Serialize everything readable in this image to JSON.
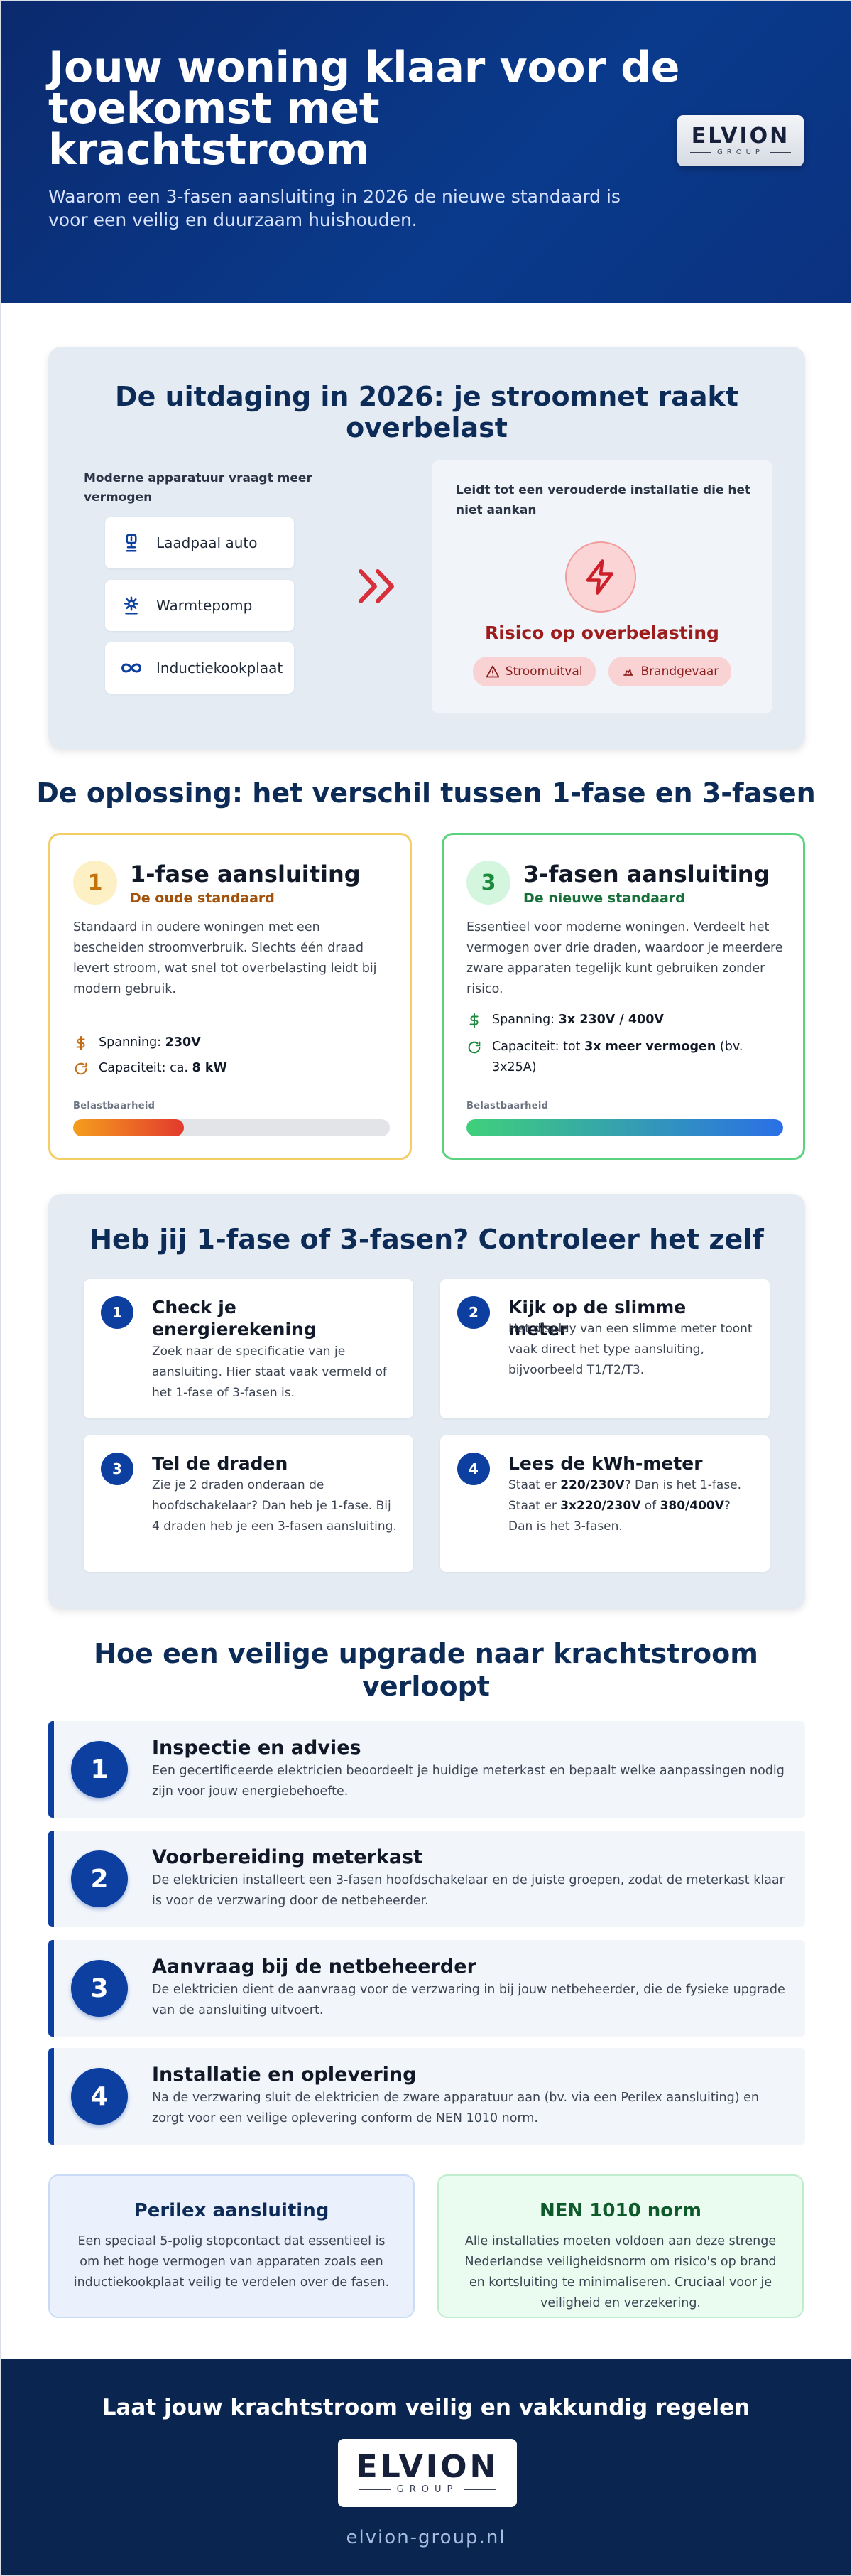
{
  "hero": {
    "title": "Jouw woning klaar voor de toekomst met krachtstroom",
    "subtitle": "Waarom een 3-fasen aansluiting in 2026 de nieuwe standaard is voor een veilig en duurzaam huishouden.",
    "logo_main": "ELVION",
    "logo_sub": "GROUP"
  },
  "challenge": {
    "title": "De uitdaging in 2026: je stroomnet raakt overbelast",
    "left_label": "Moderne apparatuur vraagt meer vermogen",
    "appliances": [
      {
        "label": "Laadpaal auto",
        "icon": "charging-station-icon"
      },
      {
        "label": "Warmtepomp",
        "icon": "heat-pump-icon"
      },
      {
        "label": "Inductiekookplaat",
        "icon": "infinity-icon"
      }
    ],
    "right_label": "Leidt tot een verouderde installatie die het niet aankan",
    "risk_title": "Risico op overbelasting",
    "risk_tags": [
      {
        "label": "Stroomuitval",
        "icon": "warning-icon"
      },
      {
        "label": "Brandgevaar",
        "icon": "fire-icon"
      }
    ]
  },
  "solution": {
    "title": "De oplossing: het verschil tussen 1-fase en 3-fasen",
    "cards": [
      {
        "number": "1",
        "name": "1-fase aansluiting",
        "subtitle": "De oude standaard",
        "description": "Standaard in oudere woningen met een bescheiden stroomverbruik. Slechts één draad levert stroom, wat snel tot overbelasting leidt bij modern gebruik.",
        "voltage_label": "Spanning: ",
        "voltage_value": "230V",
        "capacity_label": "Capaciteit: ca. ",
        "capacity_value": "8 kW",
        "capacity_suffix": "",
        "load_label": "Belastbaarheid",
        "load_fraction": 0.35
      },
      {
        "number": "3",
        "name": "3-fasen aansluiting",
        "subtitle": "De nieuwe standaard",
        "description": "Essentieel voor moderne woningen. Verdeelt het vermogen over drie draden, waardoor je meerdere zware apparaten tegelijk kunt gebruiken zonder risico.",
        "voltage_label": "Spanning: ",
        "voltage_value": "3x 230V / 400V",
        "capacity_label": "Capaciteit: tot ",
        "capacity_value": "3x meer vermogen",
        "capacity_suffix": " (bv. 3x25A)",
        "load_label": "Belastbaarheid",
        "load_fraction": 1.0
      }
    ]
  },
  "check": {
    "title": "Heb jij 1-fase of 3-fasen? Controleer het zelf",
    "items": [
      {
        "number": "1",
        "title": "Check je energierekening",
        "desc_parts": [
          "Zoek naar de specificatie van je aansluiting. Hier staat vaak vermeld of het 1-fase of 3-fasen is."
        ]
      },
      {
        "number": "2",
        "title": "Kijk op de slimme meter",
        "desc_parts": [
          "Het display van een slimme meter toont vaak direct het type aansluiting, bijvoorbeeld T1/T2/T3."
        ]
      },
      {
        "number": "3",
        "title": "Tel de draden",
        "desc_parts": [
          "Zie je 2 draden onderaan de hoofdschakelaar? Dan heb je 1-fase. Bij 4 draden heb je een 3-fasen aansluiting."
        ]
      },
      {
        "number": "4",
        "title": "Lees de kWh-meter",
        "desc_parts": [
          "Staat er ",
          "220/230V",
          "? Dan is het 1-fase. Staat er ",
          "3x220/230V",
          " of ",
          "380/400V",
          "? Dan is het 3-fasen."
        ]
      }
    ]
  },
  "upgrade": {
    "title": "Hoe een veilige upgrade naar krachtstroom verloopt",
    "steps": [
      {
        "number": "1",
        "title": "Inspectie en advies",
        "desc": "Een gecertificeerde elektricien beoordeelt je huidige meterkast en bepaalt welke aanpassingen nodig zijn voor jouw energiebehoefte."
      },
      {
        "number": "2",
        "title": "Voorbereiding meterkast",
        "desc": "De elektricien installeert een 3-fasen hoofdschakelaar en de juiste groepen, zodat de meterkast klaar is voor de verzwaring door de netbeheerder."
      },
      {
        "number": "3",
        "title": "Aanvraag bij de netbeheerder",
        "desc": "De elektricien dient de aanvraag voor de verzwaring in bij jouw netbeheerder, die de fysieke upgrade van de aansluiting uitvoert."
      },
      {
        "number": "4",
        "title": "Installatie en oplevering",
        "desc": "Na de verzwaring sluit de elektricien de zware apparatuur aan (bv. via een Perilex aansluiting) en zorgt voor een veilige oplevering conform de NEN 1010 norm."
      }
    ]
  },
  "info": {
    "perilex_title": "Perilex aansluiting",
    "perilex_desc": "Een speciaal 5-polig stopcontact dat essentieel is om het hoge vermogen van apparaten zoals een inductiekookplaat veilig te verdelen over de fasen.",
    "nen_title": "NEN 1010 norm",
    "nen_desc": "Alle installaties moeten voldoen aan deze strenge Nederlandse veiligheidsnorm om risico's op brand en kortsluiting te minimaliseren. Cruciaal voor je veiligheid en verzekering."
  },
  "footer": {
    "title": "Laat jouw krachtstroom veilig en vakkundig regelen",
    "logo_main": "ELVION",
    "logo_sub": "GROUP",
    "url": "elvion-group.nl"
  },
  "colors": {
    "navy": "#0a2550",
    "blue": "#0d3fa0",
    "risk_red": "#9d1c1c",
    "old_orange": "#a3520c",
    "new_green": "#17703a"
  }
}
